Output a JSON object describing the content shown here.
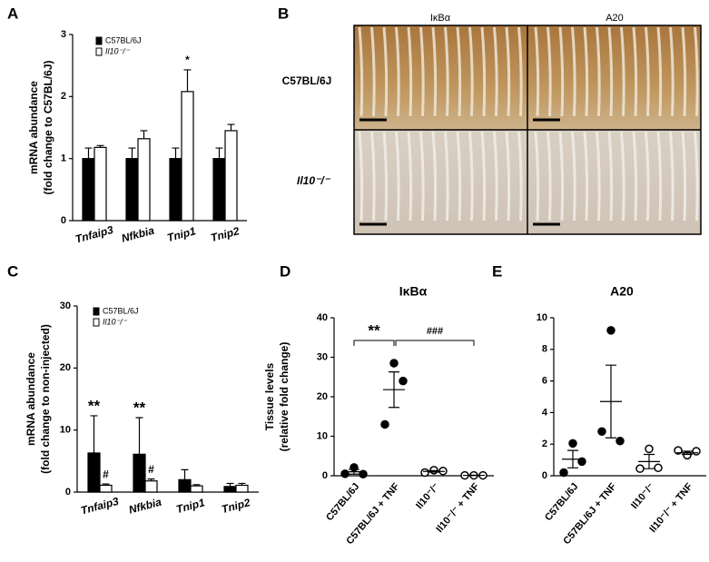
{
  "panel_labels": [
    "A",
    "B",
    "C",
    "D",
    "E"
  ],
  "images": {
    "columns": [
      "IκBα",
      "A20"
    ],
    "rows": [
      "C57BL/6J",
      "Il10⁻/⁻"
    ]
  },
  "chart_data": [
    {
      "type": "bar",
      "y_label": [
        "mRNA abundance",
        "(fold change to C57BL/6J)"
      ],
      "categories": [
        "Tnfaip3",
        "Nfkbia",
        "Tnip1",
        "Tnip2"
      ],
      "series": [
        {
          "name": "C57BL/6J",
          "color": "#000000",
          "values": [
            1,
            1,
            1,
            1
          ],
          "errors": [
            0.17,
            0.17,
            0.17,
            0.17
          ],
          "annotations": [
            null,
            null,
            null,
            null
          ]
        },
        {
          "name": "Il10⁻/⁻",
          "color": "#ffffff",
          "values": [
            1.18,
            1.32,
            2.08,
            1.45
          ],
          "errors": [
            0.03,
            0.13,
            0.35,
            0.1
          ],
          "annotations": [
            null,
            null,
            "*",
            null
          ]
        }
      ],
      "ylim": [
        0,
        3
      ],
      "yticks": [
        0,
        1,
        2,
        3
      ]
    },
    {
      "type": "bar",
      "y_label": [
        "mRNA abundance",
        "(fold change to non-injected)"
      ],
      "categories": [
        "Tnfaip3",
        "Nfkbia",
        "Tnip1",
        "Tnip2"
      ],
      "series": [
        {
          "name": "C57BL/6J",
          "color": "#000000",
          "values": [
            6.3,
            6.1,
            2.0,
            0.9
          ],
          "errors": [
            6.0,
            5.9,
            1.6,
            0.5
          ],
          "annotations": [
            "**",
            "**",
            null,
            null
          ]
        },
        {
          "name": "Il10⁻/⁻",
          "color": "#ffffff",
          "values": [
            1.1,
            1.8,
            1.0,
            1.1
          ],
          "errors": [
            0.2,
            0.3,
            0.2,
            0.3
          ],
          "annotations": [
            "#",
            "#",
            null,
            null
          ]
        }
      ],
      "ylim": [
        0,
        30
      ],
      "yticks": [
        0,
        10,
        20,
        30
      ]
    },
    {
      "type": "strip",
      "title": "IκBα",
      "y_label": [
        "Tissue levels",
        "(relative fold change)"
      ],
      "categories": [
        "C57BL/6J",
        "C57BL/6J + TNF",
        "Il10⁻/⁻",
        "Il10⁻/⁻ + TNF"
      ],
      "values": [
        [
          0.5,
          2.1,
          0.4
        ],
        [
          13,
          28.5,
          24
        ],
        [
          0.8,
          1.4,
          1.2
        ],
        [
          0.1,
          0.1,
          0.1
        ]
      ],
      "means": [
        1.0,
        21.8,
        1.1,
        0.1
      ],
      "sems": [
        0.6,
        4.5,
        0.2,
        0.05
      ],
      "filled": [
        true,
        true,
        false,
        false
      ],
      "annotations": [
        "**",
        "###"
      ],
      "ylim": [
        0,
        40
      ],
      "yticks": [
        0,
        10,
        20,
        30,
        40
      ]
    },
    {
      "type": "strip",
      "title": "A20",
      "categories": [
        "C57BL/6J",
        "C57BL/6J + TNF",
        "Il10⁻/⁻",
        "Il10⁻/⁻ + TNF"
      ],
      "values": [
        [
          0.2,
          2.05,
          0.9
        ],
        [
          2.8,
          9.2,
          2.2
        ],
        [
          0.45,
          1.7,
          0.5
        ],
        [
          1.6,
          1.3,
          1.55
        ]
      ],
      "means": [
        1.05,
        4.7,
        0.9,
        1.45
      ],
      "sems": [
        0.55,
        2.3,
        0.45,
        0.1
      ],
      "filled": [
        true,
        true,
        false,
        false
      ],
      "ylim": [
        0,
        10
      ],
      "yticks": [
        0,
        2,
        4,
        6,
        8,
        10
      ]
    }
  ]
}
